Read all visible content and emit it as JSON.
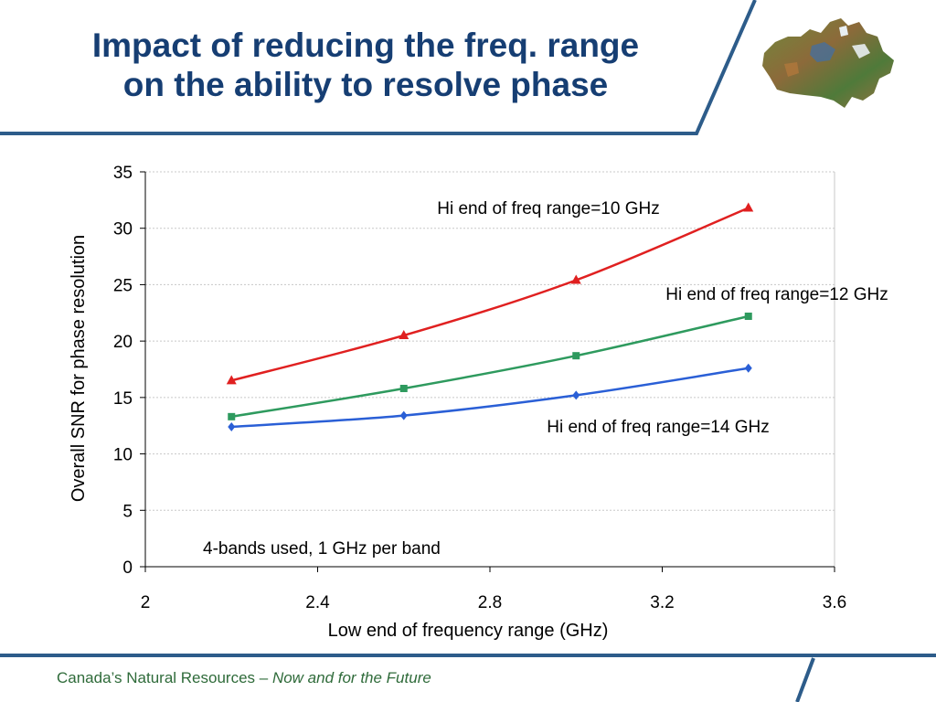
{
  "slide": {
    "title_line1": "Impact of reducing the freq. range",
    "title_line2": "on the ability to resolve phase",
    "footer_main": "Canada’s Natural Resources – ",
    "footer_italic": "Now and for the Future",
    "colors": {
      "title": "#163e73",
      "rule": "#2d5c8a",
      "footer": "#2f6b3a"
    }
  },
  "logo": {
    "icon": "canada-map-icon"
  },
  "chart_data": {
    "type": "line",
    "xlabel": "Low end of frequency range (GHz)",
    "ylabel": "Overall SNR for phase resolution",
    "xlim": [
      2,
      3.6
    ],
    "ylim": [
      0,
      35
    ],
    "x_ticks": [
      "2",
      "2.4",
      "2.8",
      "3.2",
      "3.6"
    ],
    "y_ticks": [
      "0",
      "5",
      "10",
      "15",
      "20",
      "25",
      "30",
      "35"
    ],
    "grid": true,
    "series": [
      {
        "name": "Hi end of freq range=10 GHz",
        "color": "#e02020",
        "marker": "triangle",
        "x": [
          2.2,
          2.6,
          3.0,
          3.4
        ],
        "y": [
          16.5,
          20.5,
          25.4,
          31.8
        ]
      },
      {
        "name": "Hi end of freq range=12 GHz",
        "color": "#2e9a5e",
        "marker": "square",
        "x": [
          2.2,
          2.6,
          3.0,
          3.4
        ],
        "y": [
          13.3,
          15.8,
          18.7,
          22.2
        ]
      },
      {
        "name": "Hi end of freq range=14 GHz",
        "color": "#2a5fd6",
        "marker": "diamond",
        "x": [
          2.2,
          2.6,
          3.0,
          3.4
        ],
        "y": [
          12.4,
          13.4,
          15.2,
          17.6
        ]
      }
    ],
    "annotations": [
      {
        "text": "4-bands used, 1 GHz per band"
      }
    ]
  }
}
